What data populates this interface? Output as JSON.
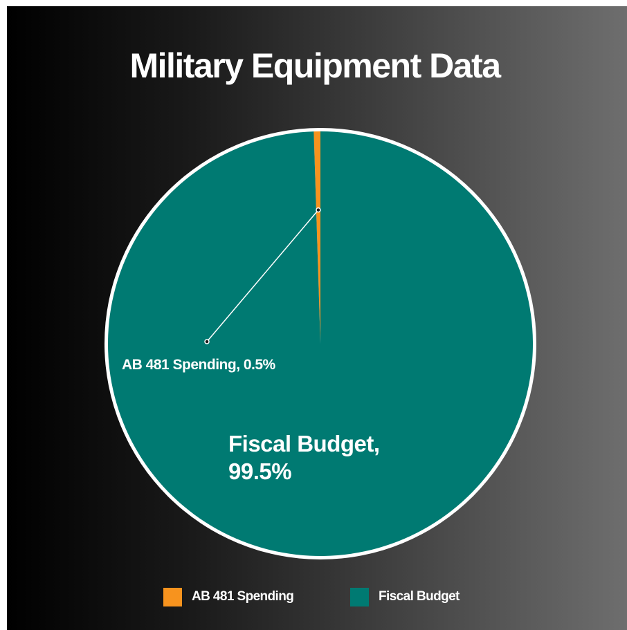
{
  "chart_data": {
    "type": "pie",
    "title": "Military Equipment Data",
    "slices": [
      {
        "name": "AB 481 Spending",
        "value": 0.5,
        "label": "AB 481 Spending, 0.5%",
        "color": "#f7931e"
      },
      {
        "name": "Fiscal Budget",
        "value": 99.5,
        "label_line1": "Fiscal Budget,",
        "label_line2": "99.5%",
        "color": "#007a72"
      }
    ],
    "legend": {
      "placement": "bottom",
      "entries": [
        "AB 481 Spending",
        "Fiscal Budget"
      ]
    }
  }
}
